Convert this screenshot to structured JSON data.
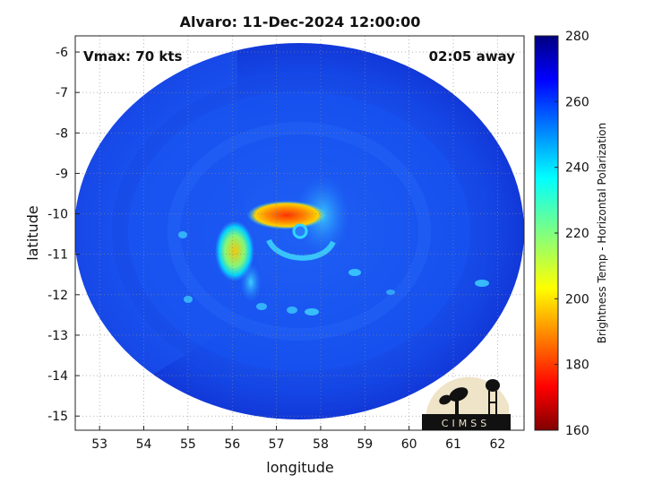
{
  "chart_data": {
    "type": "heatmap",
    "title": "Alvaro: 11-Dec-2024 12:00:00",
    "xlabel": "longitude",
    "ylabel": "latitude",
    "xlim": [
      52.45,
      62.6
    ],
    "ylim": [
      -15.35,
      -5.6
    ],
    "xticks": [
      53,
      54,
      55,
      56,
      57,
      58,
      59,
      60,
      61,
      62
    ],
    "yticks": [
      -6,
      -7,
      -8,
      -9,
      -10,
      -11,
      -12,
      -13,
      -14,
      -15
    ],
    "grid": true,
    "annotations": {
      "vmax": "Vmax: 70 kts",
      "time_offset": "02:05 away"
    },
    "colorbar": {
      "label": "Brightness Temp - Horizontal Polarization",
      "range": [
        160,
        280
      ],
      "ticks": [
        160,
        180,
        200,
        220,
        240,
        260,
        280
      ],
      "colormap": "jet",
      "location": "right"
    },
    "storm_center": {
      "lon": 57.55,
      "lat": -10.25
    },
    "features": [
      {
        "kind": "warm-core-band",
        "lon": 57.1,
        "lat": -9.95,
        "value": 185
      },
      {
        "kind": "spiral-arm",
        "lon": 56.2,
        "lat": -10.8,
        "value": 215
      },
      {
        "kind": "eye",
        "lon": 57.55,
        "lat": -10.25,
        "value": 250
      }
    ],
    "logo_text": "CIMSS"
  }
}
